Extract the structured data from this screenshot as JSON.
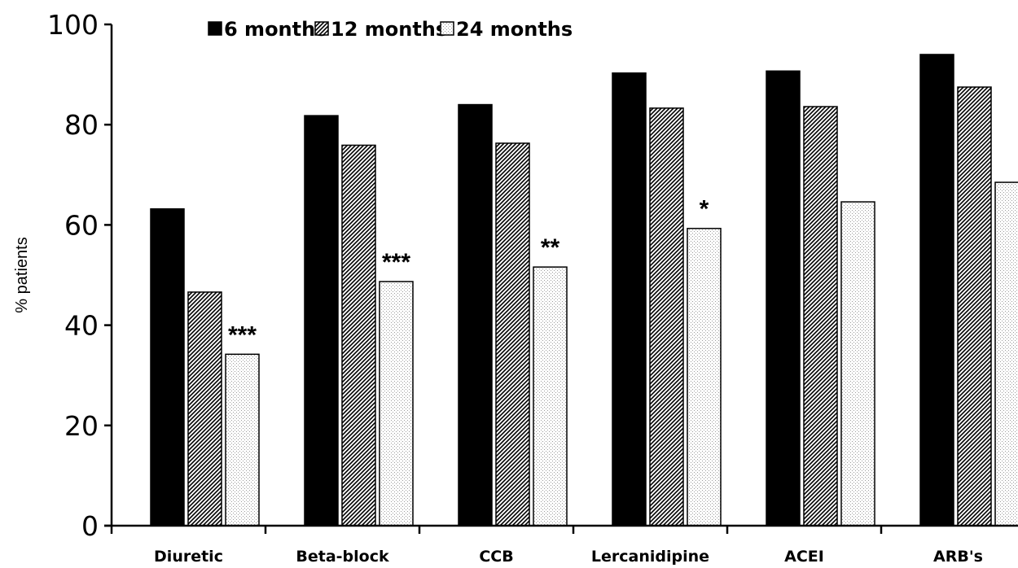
{
  "chart_data": {
    "type": "bar",
    "title": "",
    "xlabel": "",
    "ylabel": "% patients",
    "ylim": [
      0,
      100
    ],
    "yticks": [
      0,
      20,
      40,
      60,
      80,
      100
    ],
    "grid": false,
    "legend_position": "top",
    "categories": [
      "Diuretic",
      "Beta-block",
      "CCB",
      "Lercanidipine",
      "ACEI",
      "ARB's"
    ],
    "series": [
      {
        "name": "6 months",
        "values": [
          63.2,
          81.8,
          84.0,
          90.3,
          90.7,
          94.0
        ]
      },
      {
        "name": "12 months",
        "values": [
          46.6,
          75.9,
          76.3,
          83.3,
          83.6,
          87.5
        ]
      },
      {
        "name": "24 months",
        "values": [
          34.2,
          48.7,
          51.6,
          59.3,
          64.6,
          68.5
        ]
      }
    ],
    "annotations": [
      "***",
      "***",
      "**",
      "*",
      "",
      ""
    ]
  }
}
